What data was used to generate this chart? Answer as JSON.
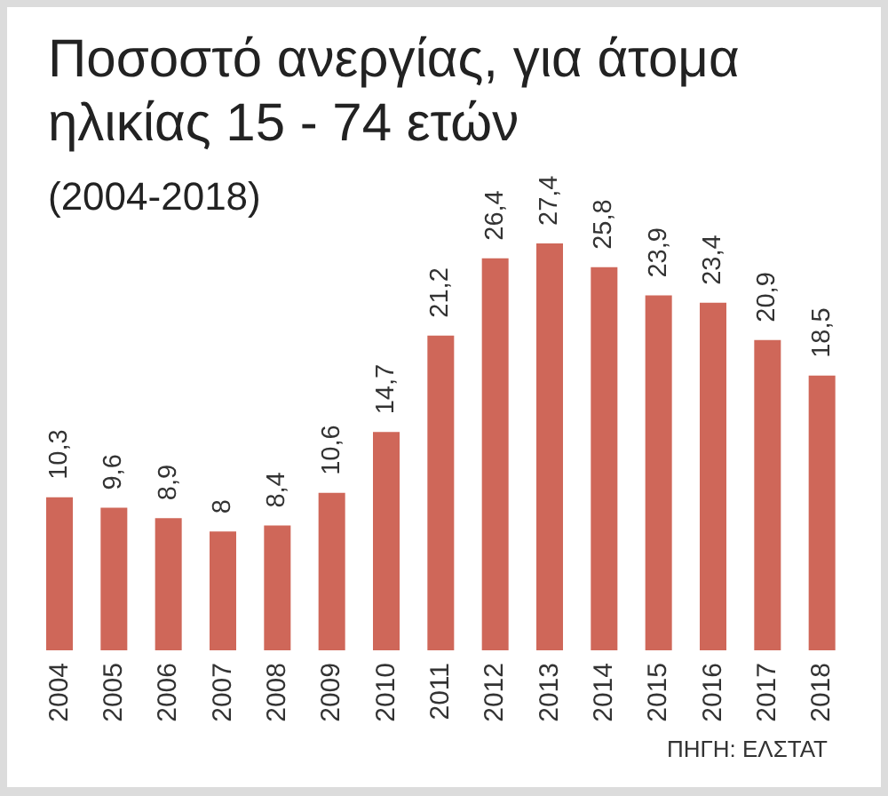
{
  "chart_data": {
    "type": "bar",
    "title": "Ποσοστό ανεργίας, για άτομα ηλικίας 15 - 74 ετών",
    "subtitle": "(2004-2018)",
    "categories": [
      "2004",
      "2005",
      "2006",
      "2007",
      "2008",
      "2009",
      "2010",
      "2011",
      "2012",
      "2013",
      "2014",
      "2015",
      "2016",
      "2017",
      "2018"
    ],
    "values": [
      10.3,
      9.6,
      8.9,
      8,
      8.4,
      10.6,
      14.7,
      21.2,
      26.4,
      27.4,
      25.8,
      23.9,
      23.4,
      20.9,
      18.5
    ],
    "value_labels": [
      "10,3",
      "9,6",
      "8,9",
      "8",
      "8,4",
      "10,6",
      "14,7",
      "21,2",
      "26,4",
      "27,4",
      "25,8",
      "23,9",
      "23,4",
      "20,9",
      "18,5"
    ],
    "color": "#cf6759",
    "annotations": [
      "ΠΗΓΗ: ΕΛΣΤΑΤ"
    ]
  }
}
